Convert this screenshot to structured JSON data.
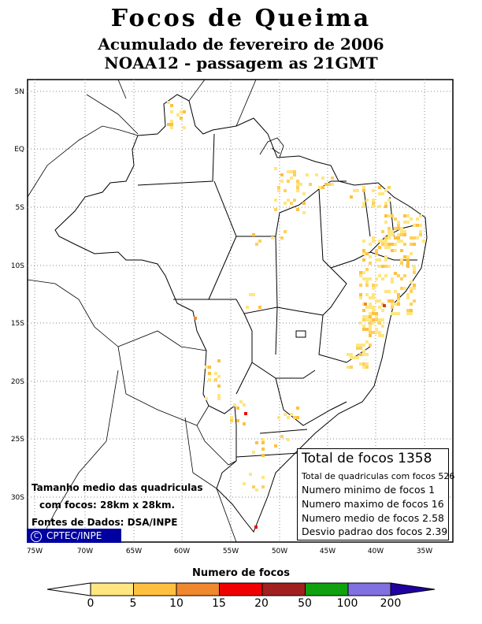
{
  "title": "Focos de Queima",
  "subtitle1": "Acumulado de fevereiro de 2006",
  "subtitle2": "NOAA12 - passagem as 21GMT",
  "lat_labels": [
    "5N",
    "EQ",
    "5S",
    "10S",
    "15S",
    "20S",
    "25S",
    "30S"
  ],
  "lon_labels": [
    "75W",
    "70W",
    "65W",
    "60W",
    "55W",
    "50W",
    "45W",
    "40W",
    "35W"
  ],
  "info": {
    "total": "Total de focos 1358",
    "quadriculas": "Total de quadriculas com focos 526",
    "minimo": "Numero minimo de focos 1",
    "maximo": "Numero maximo de focos 16",
    "medio": "Numero medio de focos 2.58",
    "desvio": "Desvio padrao dos focos 2.39"
  },
  "notes": {
    "line1": "Tamanho medio das quadriculas",
    "line2": "com focos: 28km x 28km.",
    "line3": "Fontes de Dados: DSA/INPE"
  },
  "credit": "CPTEC/INPE",
  "credit_symbol": "C",
  "legend": {
    "title": "Numero de focos",
    "labels": [
      "0",
      "5",
      "10",
      "15",
      "20",
      "50",
      "100",
      "200"
    ],
    "colors": [
      "#ffe680",
      "#ffc040",
      "#f08830",
      "#f00000",
      "#a02020",
      "#10a010",
      "#8070e0",
      "#2000a0"
    ]
  }
}
